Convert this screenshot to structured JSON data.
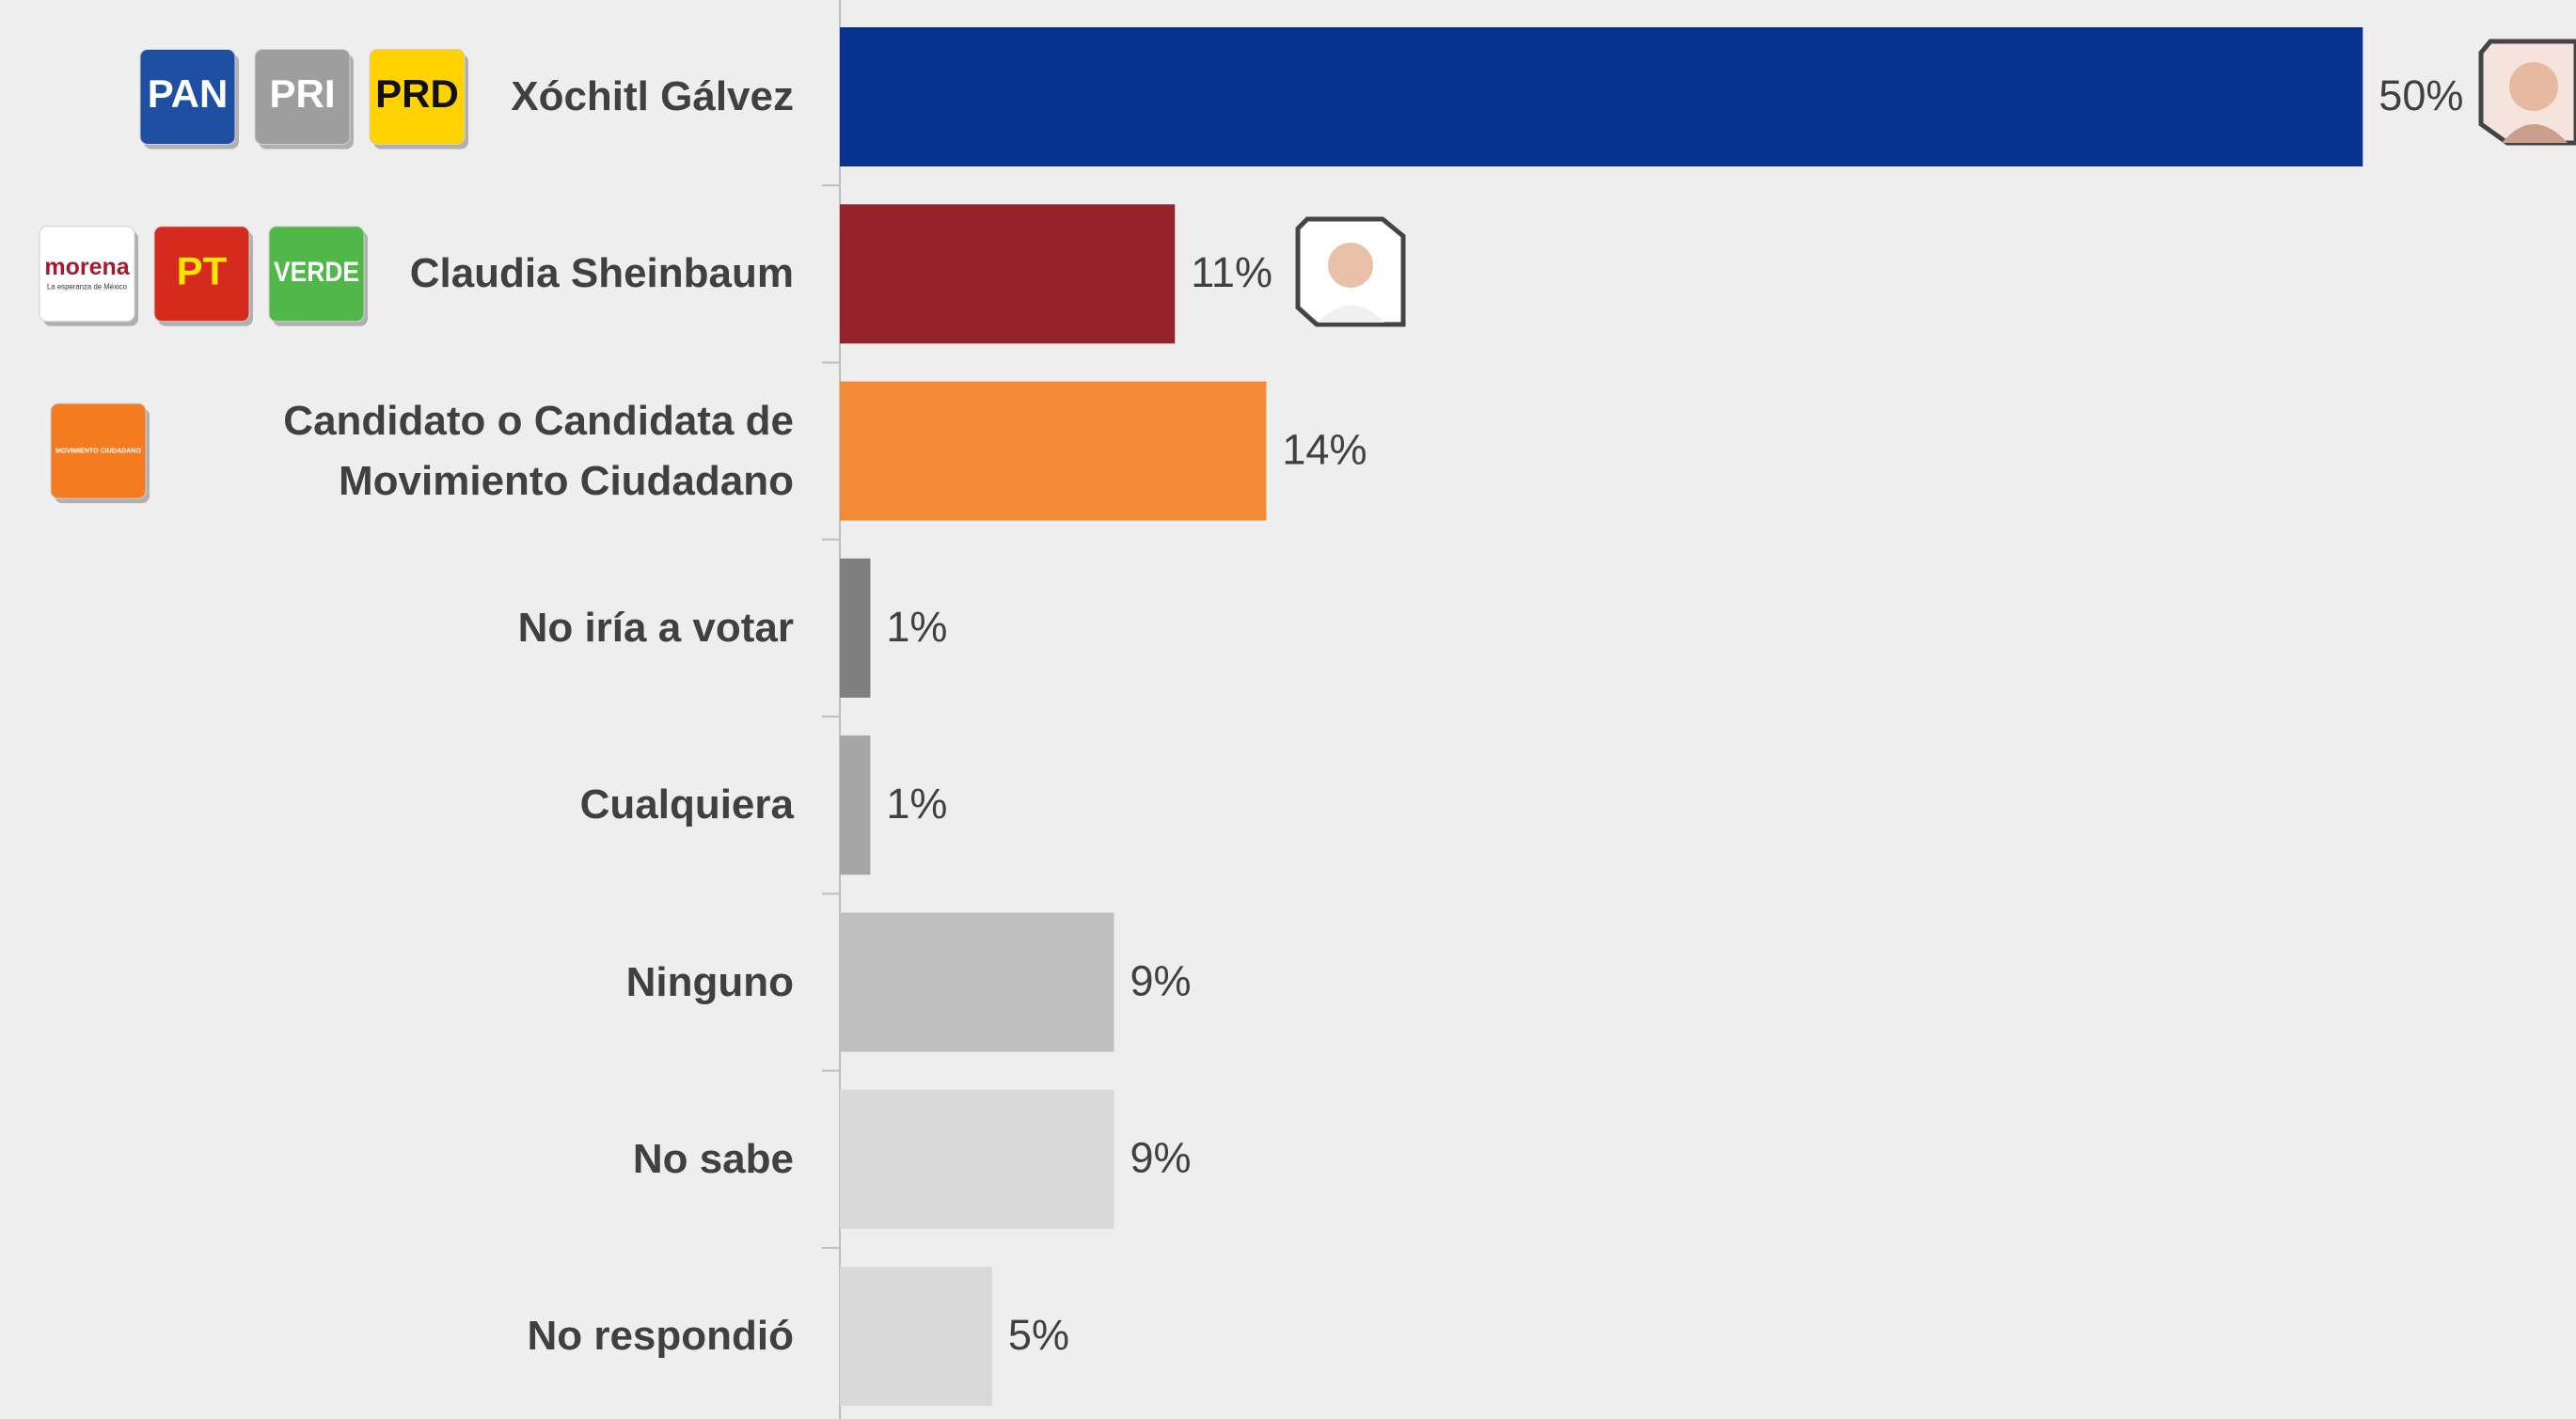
{
  "chart_data": {
    "type": "hbar",
    "categories": [
      "Xóchitl Gálvez",
      "Claudia Sheinbaum",
      "Candidato o Candidata de Movimiento Ciudadano",
      "No iría a votar",
      "Cualquiera",
      "Ninguno",
      "No sabe",
      "No respondió"
    ],
    "values": [
      50,
      11,
      14,
      1,
      1,
      9,
      9,
      5
    ],
    "value_labels": [
      "50%",
      "11%",
      "14%",
      "1%",
      "1%",
      "9%",
      "9%",
      "5%"
    ],
    "colors": [
      "#063391",
      "#96232c",
      "#f28a35",
      "#7f7f7f",
      "#a6a6a6",
      "#bfbfbf",
      "#d9d9d9",
      "#d9d9d9"
    ],
    "xlim": [
      0,
      57
    ],
    "category_logos": [
      [
        {
          "text": "PAN",
          "fill": "#1e4fa3",
          "text_color": "#ffffff"
        },
        {
          "text": "PRI",
          "fill": "#9e9e9e",
          "text_color": "#ffffff"
        },
        {
          "text": "PRD",
          "fill": "#ffd200",
          "text_color": "#111111"
        }
      ],
      [
        {
          "text": "morena",
          "subtext": "La esperanza de México",
          "fill": "#ffffff",
          "text_color": "#a6192e"
        },
        {
          "text": "PT",
          "fill": "#d52b1e",
          "text_color": "#ffe600"
        },
        {
          "text": "VERDE",
          "fill": "#50b848",
          "text_color": "#ffffff"
        }
      ],
      [
        {
          "text": "MOVIMIENTO CIUDADANO",
          "fill": "#f47b20",
          "text_color": "#ffffff"
        }
      ],
      null,
      null,
      null,
      null,
      null
    ]
  }
}
